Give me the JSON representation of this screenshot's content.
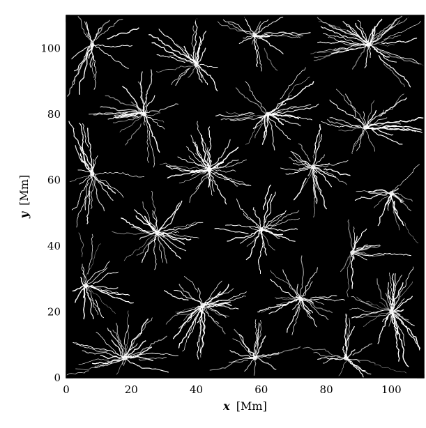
{
  "chart_data": {
    "type": "heatmap",
    "title": "",
    "xlabel": {
      "symbol": "x",
      "unit": "[Mm]"
    },
    "ylabel": {
      "symbol": "y",
      "unit": "[Mm]"
    },
    "xlim": [
      0,
      110
    ],
    "ylim": [
      0,
      110
    ],
    "x_ticks": [
      0,
      20,
      40,
      60,
      80,
      100
    ],
    "y_ticks": [
      0,
      20,
      40,
      60,
      80,
      100
    ],
    "x_tick_labels": [
      "0",
      "20",
      "40",
      "60",
      "80",
      "100"
    ],
    "y_tick_labels": [
      "0",
      "20",
      "40",
      "60",
      "80",
      "100"
    ],
    "minor_tick_step": 5,
    "grid": false,
    "colormap": "grayscale",
    "background_color": "#000000",
    "foreground_color": "#ffffff",
    "colors": {
      "axes": "#000000",
      "page": "#ffffff"
    },
    "sinks": [
      {
        "x": 8,
        "y": 101
      },
      {
        "x": 40,
        "y": 95
      },
      {
        "x": 58,
        "y": 104
      },
      {
        "x": 93,
        "y": 101
      },
      {
        "x": 24,
        "y": 80
      },
      {
        "x": 62,
        "y": 80
      },
      {
        "x": 92,
        "y": 76
      },
      {
        "x": 8,
        "y": 62
      },
      {
        "x": 44,
        "y": 63
      },
      {
        "x": 76,
        "y": 64
      },
      {
        "x": 100,
        "y": 56
      },
      {
        "x": 28,
        "y": 44
      },
      {
        "x": 60,
        "y": 45
      },
      {
        "x": 88,
        "y": 38
      },
      {
        "x": 6,
        "y": 28
      },
      {
        "x": 42,
        "y": 22
      },
      {
        "x": 72,
        "y": 24
      },
      {
        "x": 100,
        "y": 20
      },
      {
        "x": 18,
        "y": 6
      },
      {
        "x": 58,
        "y": 6
      },
      {
        "x": 86,
        "y": 6
      }
    ]
  }
}
